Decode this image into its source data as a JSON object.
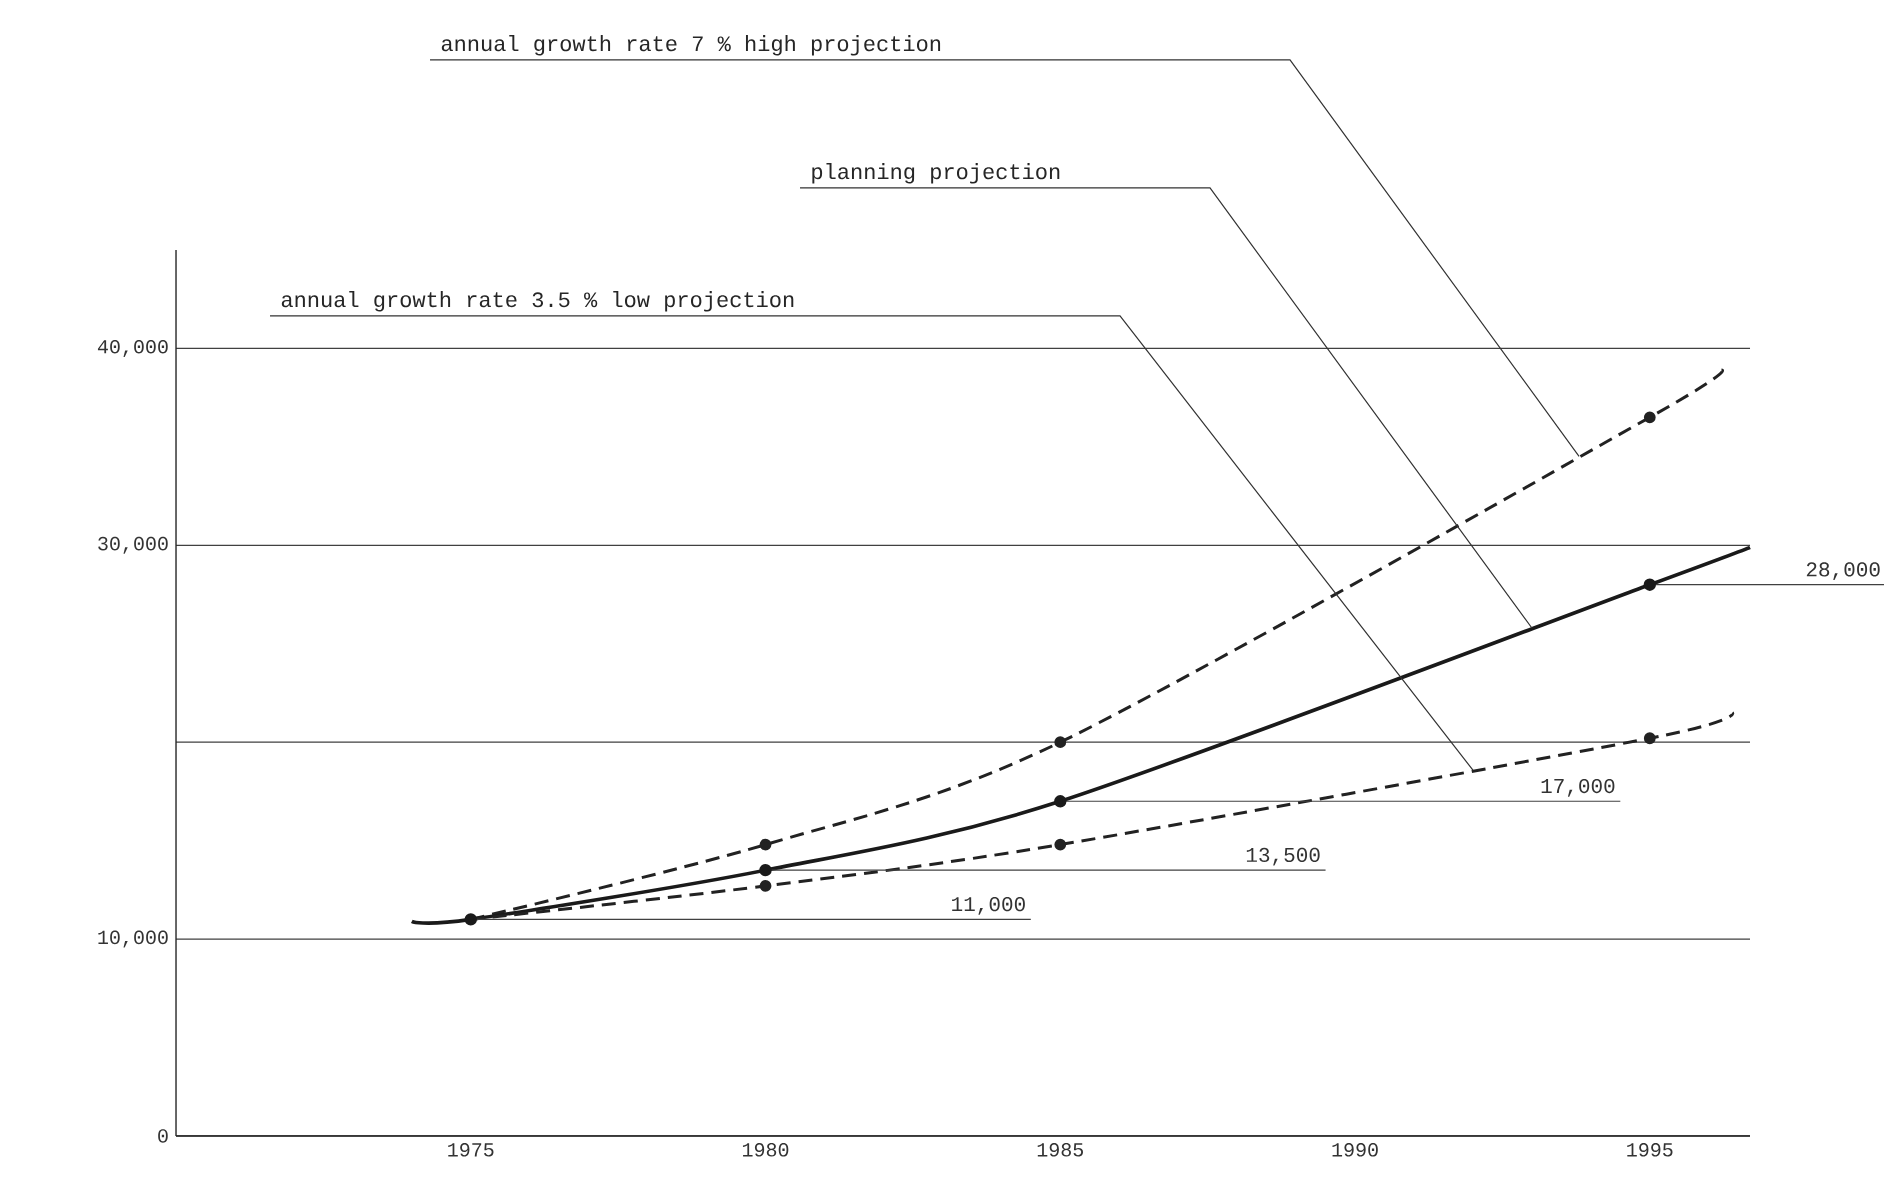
{
  "chart_data": {
    "type": "line",
    "xlim": [
      1970,
      1996.7
    ],
    "ylim": [
      0,
      45000
    ],
    "xticks": [
      1975,
      1980,
      1985,
      1990,
      1995
    ],
    "yticks": [
      {
        "value": 0,
        "label": "0"
      },
      {
        "value": 10000,
        "label": "10,000"
      },
      {
        "value": 20000,
        "label": null
      },
      {
        "value": 30000,
        "label": "30,000"
      },
      {
        "value": 40000,
        "label": "40,000"
      }
    ],
    "grid": "y",
    "marker": "circle",
    "series": [
      {
        "name": "annual growth rate 7 % high projection",
        "color": "#222222",
        "line_style": "dashed",
        "x": [
          1975,
          1980,
          1985,
          1995,
          1996.2
        ],
        "values": [
          11000,
          14800,
          20000,
          36500,
          38900
        ]
      },
      {
        "name": "planning projection",
        "color": "#1a1a1a",
        "line_style": "solid",
        "x": [
          1974,
          1975,
          1980,
          1985,
          1995,
          1996.7
        ],
        "values": [
          10900,
          11000,
          13500,
          17000,
          28000,
          29900
        ]
      },
      {
        "name": "annual growth rate 3.5 % low projection",
        "color": "#222222",
        "line_style": "dashed",
        "x": [
          1975,
          1980,
          1985,
          1995,
          1996.4
        ],
        "values": [
          11000,
          12700,
          14800,
          20200,
          21500
        ]
      }
    ],
    "annotations": [
      {
        "text": "11,000",
        "x": 1975,
        "y": 11000
      },
      {
        "text": "13,500",
        "x": 1980,
        "y": 13500
      },
      {
        "text": "17,000",
        "x": 1985,
        "y": 17000
      },
      {
        "text": "28,000",
        "x": 1995,
        "y": 28000
      }
    ]
  }
}
